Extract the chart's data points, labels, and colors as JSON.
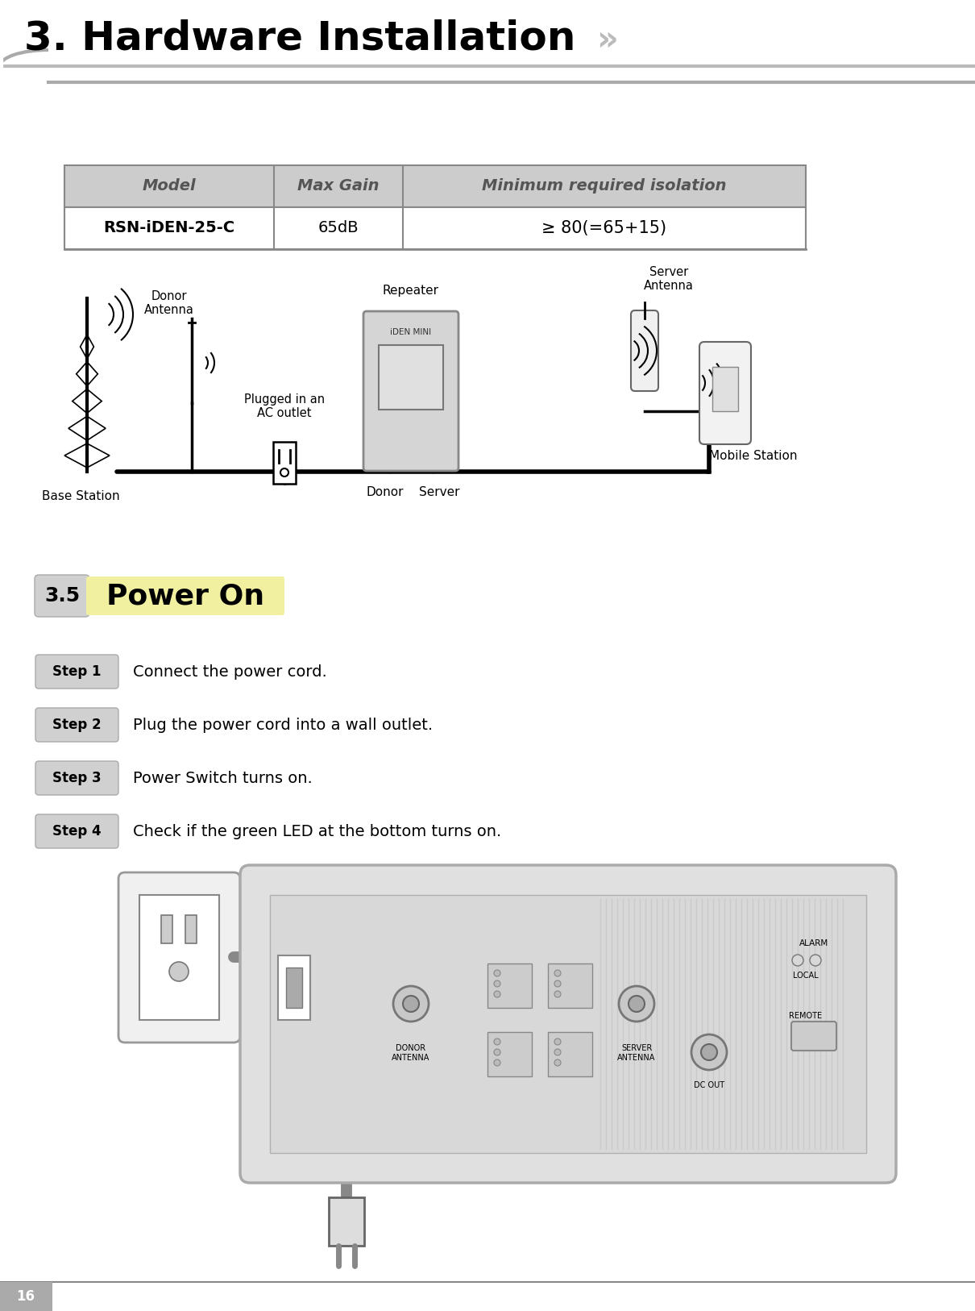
{
  "title": "3. Hardware Installation",
  "bg_color": "#ffffff",
  "header_bg": "#ffffff",
  "header_text_color": "#000000",
  "chevron_color": "#aaaaaa",
  "header_line_color": "#aaaaaa",
  "table_header_bg": "#c8c8c8",
  "table_border": "#888888",
  "table_cols": [
    "Model",
    "Max Gain",
    "Minimum required isolation"
  ],
  "table_data": [
    [
      "RSN-iDEN-25-C",
      "65dB",
      "≥ 80(=65+15)"
    ]
  ],
  "section_num": "3.5",
  "section_title": "Power On",
  "section_title_bg": "#f0f0a0",
  "step_badge_bg": "#c8c8c8",
  "steps": [
    {
      "label": "Step 1",
      "text": "Connect the power cord."
    },
    {
      "label": "Step 2",
      "text": "Plug the power cord into a wall outlet."
    },
    {
      "label": "Step 3",
      "text": "Power Switch turns on."
    },
    {
      "label": "Step 4",
      "text": "Check if the green LED at the bottom turns on."
    }
  ],
  "diagram_labels": {
    "donor_antenna": "Donor\nAntenna",
    "base_station": "Base Station",
    "repeater": "Repeater",
    "plugged": "Plugged in an\nAC outlet",
    "server_antenna": "Server\nAntenna",
    "mobile_station": "Mobile Station",
    "donor": "Donor",
    "server": "Server"
  },
  "page_number": "16"
}
